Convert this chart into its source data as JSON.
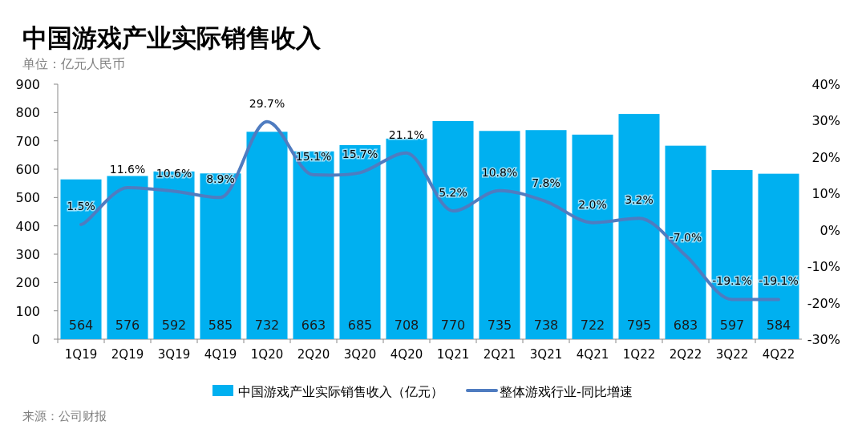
{
  "chart_data": {
    "type": "bar",
    "title": "中国游戏产业实际销售收入",
    "subtitle": "单位：亿元人民币",
    "categories": [
      "1Q19",
      "2Q19",
      "3Q19",
      "4Q19",
      "1Q20",
      "2Q20",
      "3Q20",
      "4Q20",
      "1Q21",
      "2Q21",
      "3Q21",
      "4Q21",
      "1Q22",
      "2Q22",
      "3Q22",
      "4Q22"
    ],
    "series": [
      {
        "name": "中国游戏产业实际销售收入（亿元）",
        "color": "#00b0f0",
        "values": [
          564,
          576,
          592,
          585,
          732,
          663,
          685,
          708,
          770,
          735,
          738,
          722,
          795,
          683,
          597,
          584
        ],
        "value_labels": [
          "564",
          "576",
          "592",
          "585",
          "732",
          "663",
          "685",
          "708",
          "770",
          "735",
          "738",
          "722",
          "795",
          "683",
          "597",
          "584"
        ]
      },
      {
        "name": "整体游戏行业-同比增速",
        "type": "line",
        "axis": "y2",
        "color": "#4f7cc0",
        "values": [
          1.5,
          11.6,
          10.6,
          8.9,
          29.7,
          15.1,
          15.7,
          21.1,
          5.2,
          10.8,
          7.8,
          2.0,
          3.2,
          -7.0,
          -19.1,
          -19.1
        ],
        "value_labels": [
          "1.5%",
          "11.6%",
          "10.6%",
          "8.9%",
          "29.7%",
          "15.1%",
          "15.7%",
          "21.1%",
          "5.2%",
          "10.8%",
          "7.8%",
          "2.0%",
          "3.2%",
          "-7.0%",
          "-19.1%",
          "-19.1%"
        ]
      }
    ],
    "ylim": [
      0,
      900
    ],
    "yticks": [
      0,
      100,
      200,
      300,
      400,
      500,
      600,
      700,
      800,
      900
    ],
    "y2lim": [
      -30,
      40
    ],
    "y2ticks": [
      {
        "value": -30,
        "label": "-30%"
      },
      {
        "value": -20,
        "label": "-20%"
      },
      {
        "value": -10,
        "label": "-10%"
      },
      {
        "value": 0,
        "label": "0%"
      },
      {
        "value": 10,
        "label": "10%"
      },
      {
        "value": 20,
        "label": "20%"
      },
      {
        "value": 30,
        "label": "30%"
      },
      {
        "value": 40,
        "label": "40%"
      }
    ],
    "legend": "bottom",
    "annotations": [
      "来源：公司财报"
    ]
  }
}
